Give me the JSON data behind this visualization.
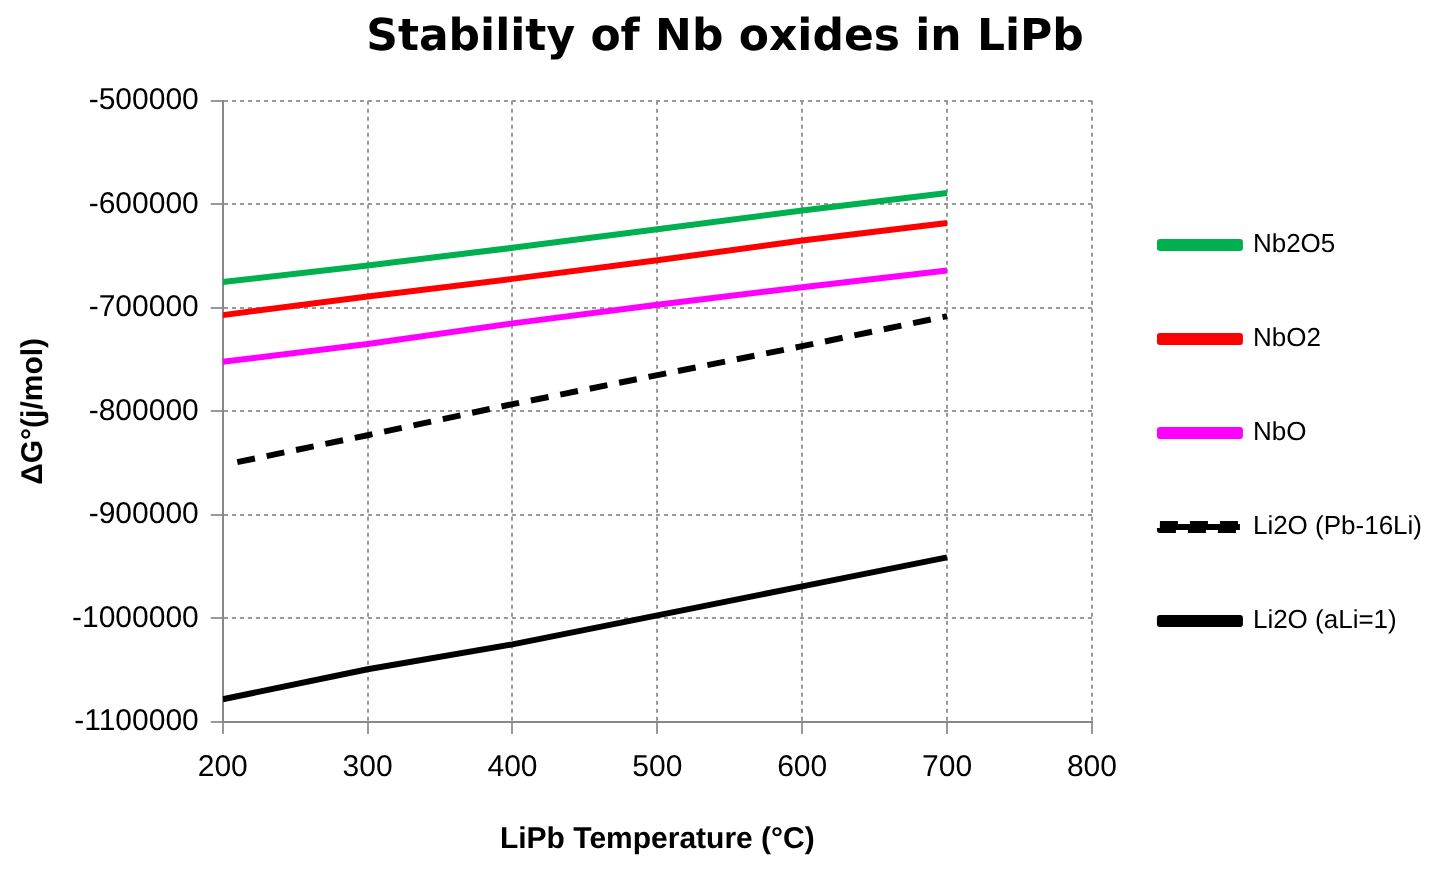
{
  "chart_data": {
    "type": "line",
    "title": "Stability of Nb oxides in LiPb",
    "xlabel": "LiPb Temperature (°C)",
    "ylabel": "ΔG°(j/mol)",
    "x": [
      200,
      300,
      400,
      500,
      600,
      700
    ],
    "series": [
      {
        "name": "Nb2O5",
        "color": "#00b050",
        "values": [
          -675000,
          -659000,
          -642000,
          -624000,
          -606000,
          -589000
        ]
      },
      {
        "name": "NbO2",
        "color": "#ff0000",
        "values": [
          -707000,
          -689000,
          -672000,
          -654000,
          -635000,
          -618000
        ]
      },
      {
        "name": "NbO",
        "color": "#ff00ff",
        "values": [
          -752000,
          -735000,
          -715000,
          -697000,
          -680000,
          -664000
        ]
      },
      {
        "name": "Li2O (Pb-16Li)",
        "color": "#000000",
        "line_style": "dashed",
        "x": [
          210,
          300,
          400,
          500,
          600,
          700
        ],
        "values": [
          -849000,
          -823000,
          -793000,
          -765000,
          -737000,
          -708000
        ]
      },
      {
        "name": "Li2O (aLi=1)",
        "color": "#000000",
        "values": [
          -1078000,
          -1049000,
          -1025000,
          -997000,
          -969000,
          -941000
        ]
      }
    ],
    "xlim": [
      200,
      800
    ],
    "xticks": [
      200,
      300,
      400,
      500,
      600,
      700,
      800
    ],
    "ylim": [
      -1100000,
      -500000
    ],
    "yticks": [
      -1100000,
      -1000000,
      -900000,
      -800000,
      -700000,
      -600000,
      -500000
    ],
    "grid": true,
    "legend": "right",
    "marker": "none",
    "line_style": "solid"
  }
}
